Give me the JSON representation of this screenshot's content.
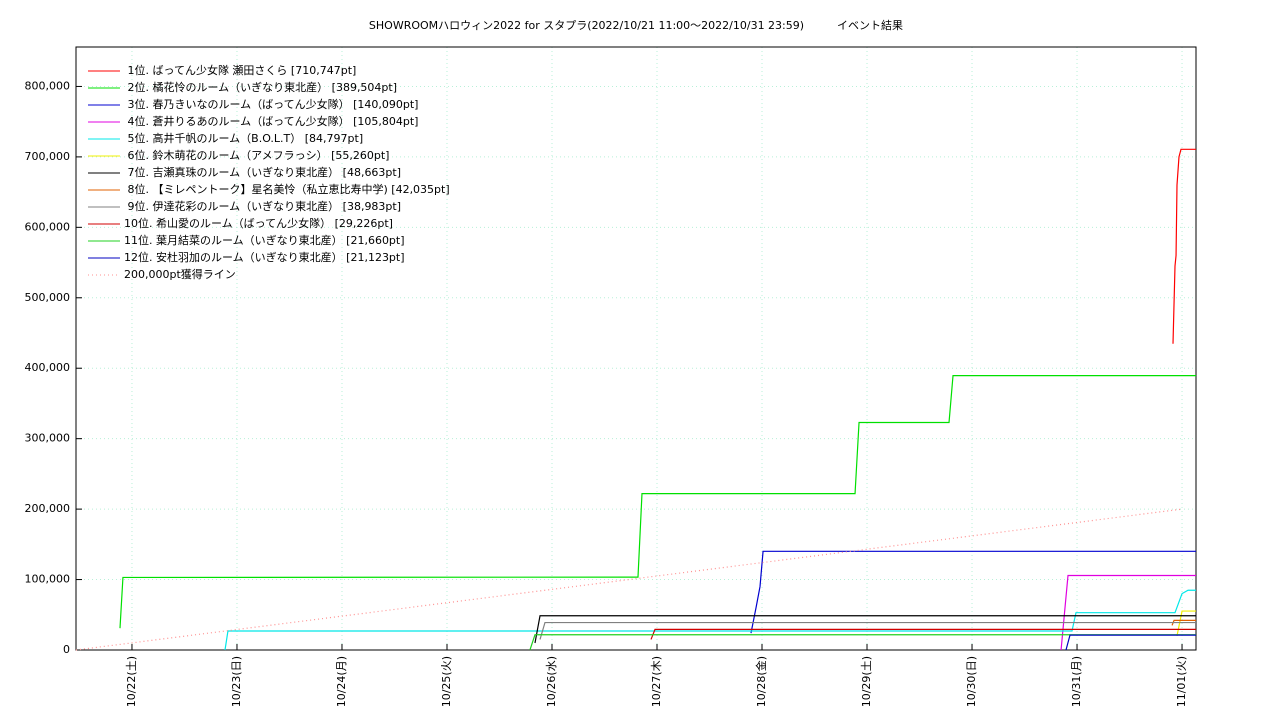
{
  "chart_data": {
    "type": "line",
    "title": "SHOWROOMハロウィン2022 for スタプラ(2022/10/21 11:00〜2022/10/31 23:59)　　　イベント結果",
    "xlim": [
      0.467,
      11.133
    ],
    "xticks": [
      {
        "value": 1,
        "label": "10/22(土)"
      },
      {
        "value": 2,
        "label": "10/23(日)"
      },
      {
        "value": 3,
        "label": "10/24(月)"
      },
      {
        "value": 4,
        "label": "10/25(火)"
      },
      {
        "value": 5,
        "label": "10/26(水)"
      },
      {
        "value": 6,
        "label": "10/27(木)"
      },
      {
        "value": 7,
        "label": "10/28(金)"
      },
      {
        "value": 8,
        "label": "10/29(土)"
      },
      {
        "value": 9,
        "label": "10/30(日)"
      },
      {
        "value": 10,
        "label": "10/31(月)"
      },
      {
        "value": 11,
        "label": "11/01(火)"
      }
    ],
    "ylim": [
      0,
      856000
    ],
    "yticks": [
      {
        "value": 0,
        "label": "0"
      },
      {
        "value": 100000,
        "label": "100,000"
      },
      {
        "value": 200000,
        "label": "200,000"
      },
      {
        "value": 300000,
        "label": "300,000"
      },
      {
        "value": 400000,
        "label": "400,000"
      },
      {
        "value": 500000,
        "label": "500,000"
      },
      {
        "value": 600000,
        "label": "600,000"
      },
      {
        "value": 700000,
        "label": "700,000"
      },
      {
        "value": 800000,
        "label": "800,000"
      }
    ],
    "grid": true,
    "legend": "upper left",
    "series": [
      {
        "name": " 1位. ばってん少女隊 瀬田さくら [710,747pt]",
        "color": "#ff0000",
        "x": [
          10.914,
          10.933,
          10.943,
          10.952,
          10.971,
          10.99,
          11.133
        ],
        "values": [
          434700,
          545000,
          560000,
          660000,
          700000,
          710747,
          710747
        ]
      },
      {
        "name": " 2位. 橘花怜のルーム（いぎなり東北産） [389,504pt]",
        "color": "#00e000",
        "x": [
          0.886,
          0.914,
          5.819,
          5.857,
          7.886,
          7.924,
          8.781,
          8.819,
          11.133
        ],
        "values": [
          31000,
          103000,
          103500,
          222000,
          222000,
          323000,
          323000,
          389504,
          389504
        ]
      },
      {
        "name": " 3位. 春乃きいなのルーム（ばってん少女隊） [140,090pt]",
        "color": "#0000d0",
        "x": [
          6.895,
          6.943,
          6.981,
          7.01,
          11.133
        ],
        "values": [
          24000,
          60000,
          90000,
          140090,
          140090
        ]
      },
      {
        "name": " 4位. 蒼井りるあのルーム（ばってん少女隊） [105,804pt]",
        "color": "#e000e0",
        "x": [
          9.848,
          9.914,
          11.133
        ],
        "values": [
          0,
          105804,
          105804
        ]
      },
      {
        "name": " 5位. 高井千帆のルーム（B.O.L.T） [84,797pt]",
        "color": "#00e8e8",
        "x": [
          1.886,
          1.914,
          9.952,
          9.99,
          10.933,
          11.0,
          11.057,
          11.133
        ],
        "values": [
          0,
          27000,
          27000,
          53000,
          53000,
          80000,
          84797,
          84797
        ]
      },
      {
        "name": " 6位. 鈴木萌花のルーム（アメフラっシ） [55,260pt]",
        "color": "#f0f000",
        "x": [
          10.952,
          11.0,
          11.133
        ],
        "values": [
          20000,
          55260,
          55260
        ]
      },
      {
        "name": " 7位. 吉瀬真珠のルーム（いぎなり東北産） [48,663pt]",
        "color": "#000000",
        "x": [
          4.838,
          4.886,
          11.133
        ],
        "values": [
          10000,
          48663,
          48663
        ]
      },
      {
        "name": " 8位. 【ミレペントーク】星名美怜（私立恵比寿中学) [42,035pt]",
        "color": "#e06000",
        "x": [
          10.905,
          10.924,
          11.133
        ],
        "values": [
          35000,
          42035,
          42035
        ]
      },
      {
        "name": " 9位. 伊達花彩のルーム（いぎなり東北産） [38,983pt]",
        "color": "#808080",
        "x": [
          4.886,
          4.933,
          11.133
        ],
        "values": [
          15000,
          38983,
          38983
        ]
      },
      {
        "name": "10位. 希山愛のルーム（ばってん少女隊） [29,226pt]",
        "color": "#d00000",
        "x": [
          5.943,
          5.981,
          11.133
        ],
        "values": [
          15000,
          29226,
          29226
        ]
      },
      {
        "name": "11位. 葉月結菜のルーム（いぎなり東北産） [21,660pt]",
        "color": "#20d020",
        "x": [
          4.79,
          4.838,
          11.133
        ],
        "values": [
          0,
          21660,
          21660
        ]
      },
      {
        "name": "12位. 安杜羽加のルーム（いぎなり東北産） [21,123pt]",
        "color": "#0000c0",
        "x": [
          9.895,
          9.933,
          11.133
        ],
        "values": [
          0,
          21123,
          21123
        ]
      },
      {
        "name": "200,000pt獲得ライン",
        "color": "#ff9090",
        "dotted": true,
        "x": [
          0.467,
          10.999
        ],
        "values": [
          0,
          200000
        ]
      }
    ]
  }
}
